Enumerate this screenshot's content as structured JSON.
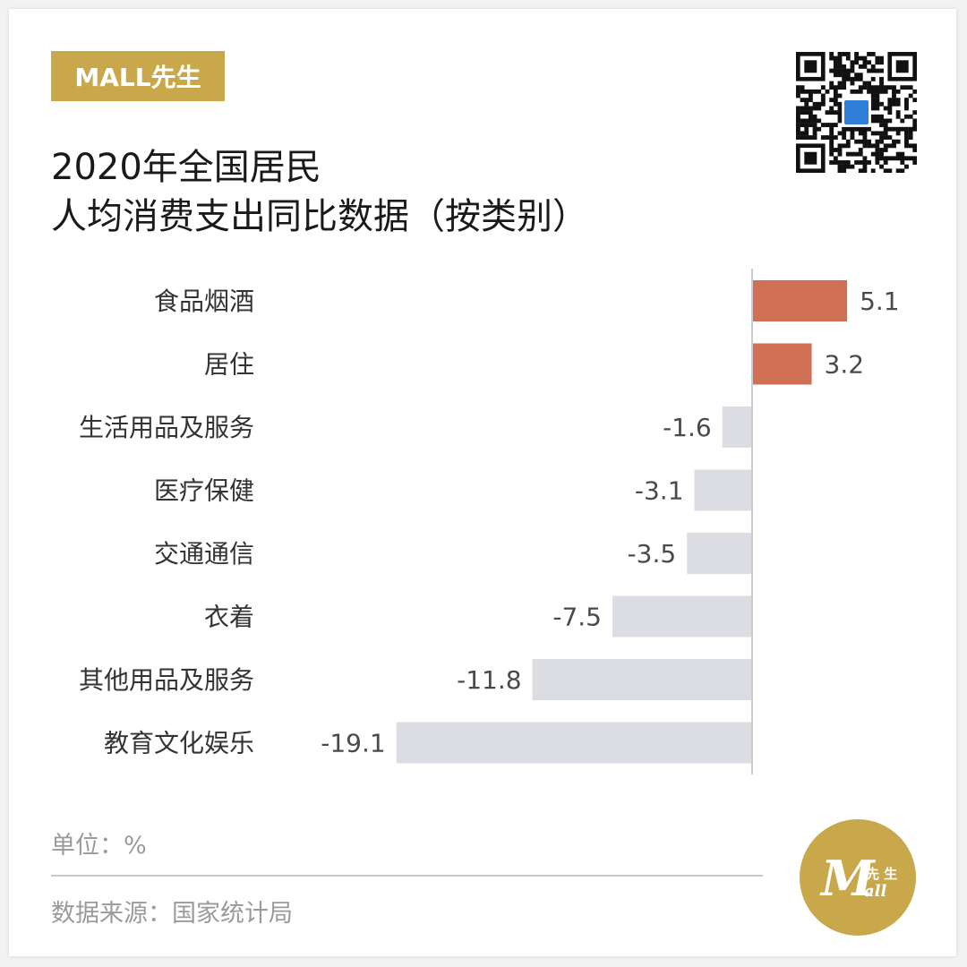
{
  "brand": {
    "name": "MALL先生",
    "color": "#c9a84c"
  },
  "title": {
    "line1": "2020年全国居民",
    "line2": "人均消费支出同比数据（按类别）"
  },
  "footer": {
    "unit": "单位：%",
    "source": "数据来源：国家统计局"
  },
  "colors": {
    "positive": "#cf7055",
    "negative": "#dcdde2",
    "axis": "#cccccc",
    "label": "#333333",
    "value": "#4a4a4a"
  },
  "chart_data": {
    "type": "bar",
    "orientation": "horizontal",
    "categories": [
      "食品烟酒",
      "居住",
      "生活用品及服务",
      "医疗保健",
      "交通通信",
      "衣着",
      "其他用品及服务",
      "教育文化娱乐"
    ],
    "values": [
      5.1,
      3.2,
      -1.6,
      -3.1,
      -3.5,
      -7.5,
      -11.8,
      -19.1
    ],
    "value_labels": [
      "5.1",
      "3.2",
      "-1.6",
      "-3.1",
      "-3.5",
      "-7.5",
      "-11.8",
      "-19.1"
    ],
    "xlabel": "",
    "ylabel": "",
    "unit": "%",
    "xlim": [
      -19.1,
      5.1
    ],
    "grid": false,
    "legend": "none"
  }
}
